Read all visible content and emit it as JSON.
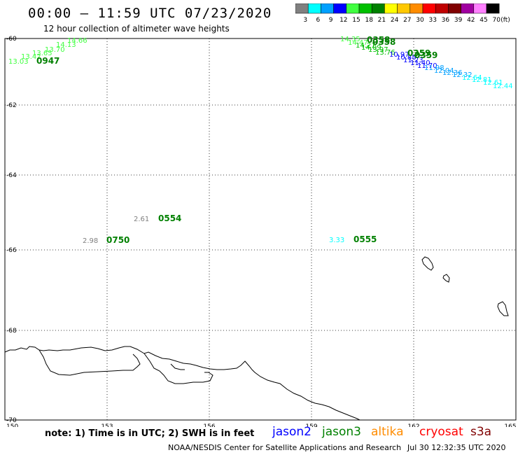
{
  "header": {
    "title": "00:00 – 11:59 UTC 07/23/2020",
    "subtitle": "12 hour collection of altimeter wave heights"
  },
  "legend": {
    "unit": "(ft)",
    "colors": [
      "#808080",
      "#00ffff",
      "#00a0ff",
      "#0000ff",
      "#40ff40",
      "#00c000",
      "#008000",
      "#ffff00",
      "#ffc800",
      "#ff8c00",
      "#ff0000",
      "#c00000",
      "#800000",
      "#a000a0",
      "#ff80ff",
      "#000000"
    ],
    "labels": [
      "3",
      "6",
      "9",
      "12",
      "15",
      "18",
      "21",
      "24",
      "27",
      "30",
      "33",
      "36",
      "39",
      "42",
      "45",
      "70"
    ]
  },
  "axes": {
    "x_ticks": [
      "150",
      "153",
      "156",
      "159",
      "162",
      "165"
    ],
    "y_ticks": [
      "-60",
      "-62",
      "-64",
      "-66",
      "-68",
      "-70"
    ]
  },
  "observations": [
    {
      "swh": "2.61",
      "time": "0554",
      "swh_color": "#808080",
      "time_color": "#008000"
    },
    {
      "swh": "2.98",
      "time": "0750",
      "swh_color": "#808080",
      "time_color": "#008000"
    },
    {
      "swh": "3.33",
      "time": "0555",
      "swh_color": "#00ffff",
      "time_color": "#008000"
    },
    {
      "swh": "13.03",
      "time": "0947",
      "swh_color": "#40ff40",
      "time_color": "#008000"
    }
  ],
  "track_labels_upper_left": [
    "13.03",
    "13.42",
    "13.65",
    "13.70",
    "14.13",
    "14.66"
  ],
  "track_labels_upper_right_green": [
    "14.35",
    "14.47",
    "14.21",
    "14.09",
    "13.97",
    "13.76"
  ],
  "track_labels_upper_right_blue": [
    "10.97",
    "10.88",
    "11.23",
    "11.40",
    "11.70",
    "11.98",
    "12.04",
    "12.36",
    "12.32",
    "12.64",
    "12.81",
    "12.61",
    "12.44"
  ],
  "track_times_right": [
    "0358",
    "0358",
    "0359",
    "0359"
  ],
  "footer": {
    "note": "note: 1) Time is in UTC; 2) SWH is in feet",
    "satellites": [
      {
        "name": "jason2",
        "color": "#0000ff"
      },
      {
        "name": "jason3",
        "color": "#008000"
      },
      {
        "name": "altika",
        "color": "#ff8c00"
      },
      {
        "name": "cryosat",
        "color": "#ff0000"
      },
      {
        "name": "s3a",
        "color": "#800000"
      }
    ],
    "credit": "NOAA/NESDIS Center for Satellite Applications and Research",
    "timestamp": "Jul 30 12:32:35 UTC 2020"
  }
}
